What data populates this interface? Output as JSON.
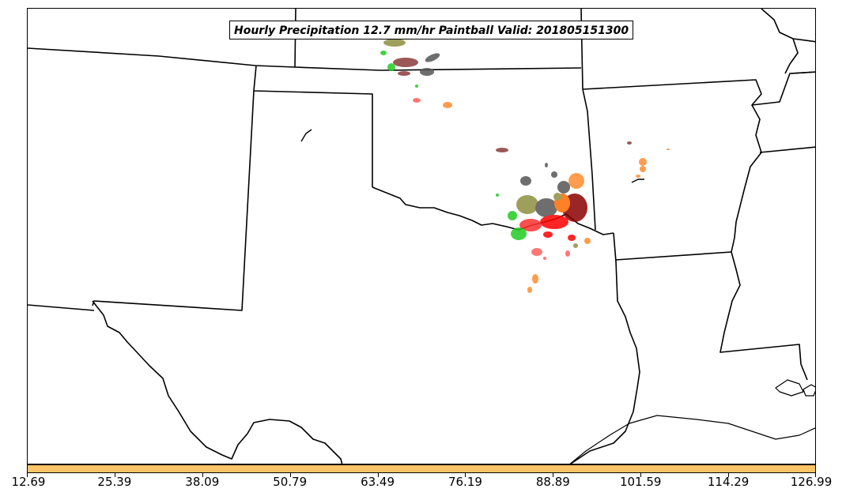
{
  "title": "Hourly Precipitation 12.7 mm/hr Paintball Valid: 201805151300",
  "colorbar": {
    "color": "#ffc466",
    "tick_labels": [
      "12.69",
      "25.39",
      "38.09",
      "50.79",
      "63.49",
      "76.19",
      "88.89",
      "101.59",
      "114.29",
      "126.99"
    ]
  },
  "colors": {
    "grey": "#555555",
    "brown": "#8b3a3a",
    "olive": "#8f8f40",
    "green": "#22cc22",
    "red": "#ff0000",
    "salmon": "#ff6060",
    "orange": "#ff8c30"
  }
}
